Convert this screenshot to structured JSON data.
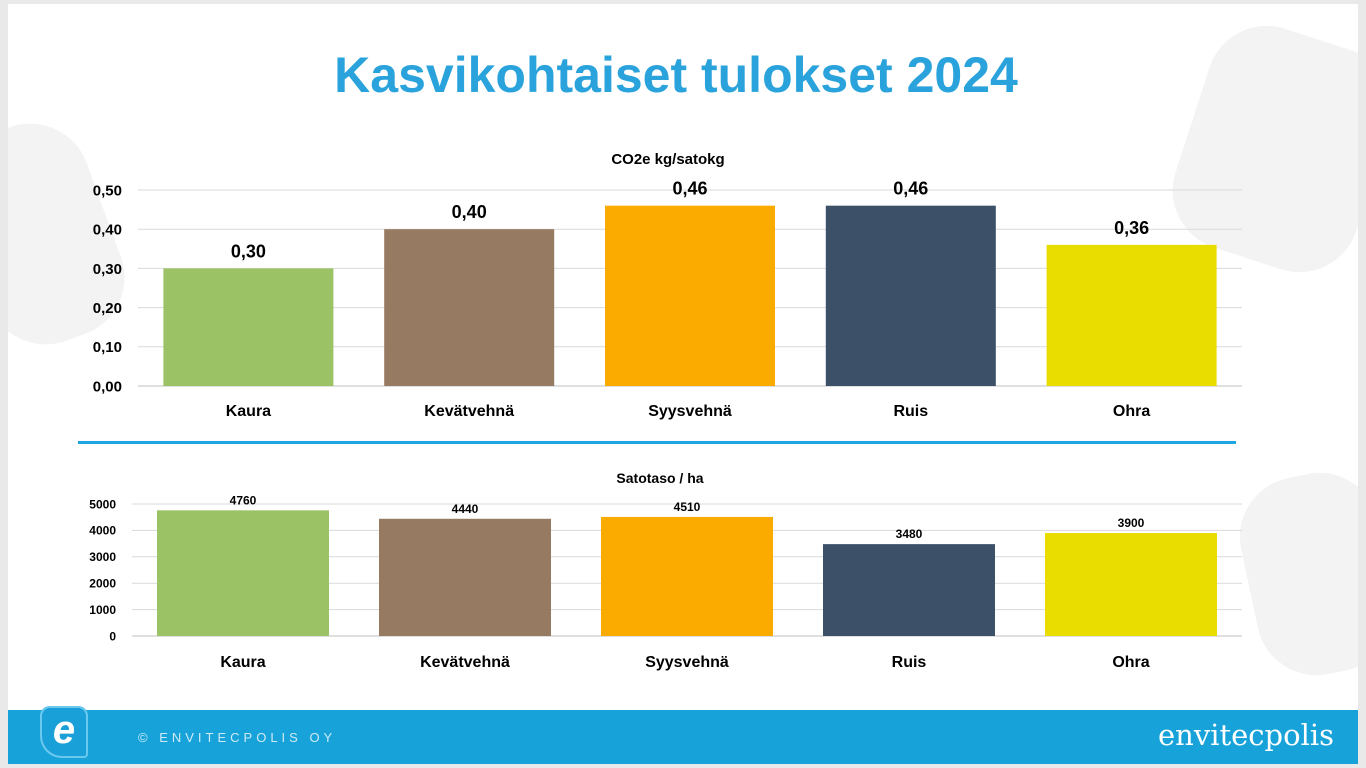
{
  "title": "Kasvikohtaiset tulokset 2024",
  "footer": {
    "logo_letter": "e",
    "copyright": "© ENVITECPOLIS OY",
    "brand": "envitecpolis"
  },
  "chart_data": [
    {
      "type": "bar",
      "title": "CO2e kg/satokg",
      "categories": [
        "Kaura",
        "Kevätvehnä",
        "Syysvehnä",
        "Ruis",
        "Ohra"
      ],
      "values": [
        0.3,
        0.4,
        0.46,
        0.46,
        0.36
      ],
      "data_labels": [
        "0,30",
        "0,40",
        "0,46",
        "0,46",
        "0,36"
      ],
      "yticks": [
        "0,00",
        "0,10",
        "0,20",
        "0,30",
        "0,40",
        "0,50"
      ],
      "ylim": [
        0,
        0.5
      ],
      "colors": [
        "#9bc264",
        "#977a62",
        "#fbaa00",
        "#3c5068",
        "#e9dd00"
      ],
      "grid": true,
      "legend": "none"
    },
    {
      "type": "bar",
      "title": "Satotaso / ha",
      "categories": [
        "Kaura",
        "Kevätvehnä",
        "Syysvehnä",
        "Ruis",
        "Ohra"
      ],
      "values": [
        4760,
        4440,
        4510,
        3480,
        3900
      ],
      "data_labels": [
        "4760",
        "4440",
        "4510",
        "3480",
        "3900"
      ],
      "yticks": [
        "0",
        "1000",
        "2000",
        "3000",
        "4000",
        "5000"
      ],
      "ylim": [
        0,
        5000
      ],
      "colors": [
        "#9bc264",
        "#977a62",
        "#fbaa00",
        "#3c5068",
        "#e9dd00"
      ],
      "grid": true,
      "legend": "none"
    }
  ]
}
